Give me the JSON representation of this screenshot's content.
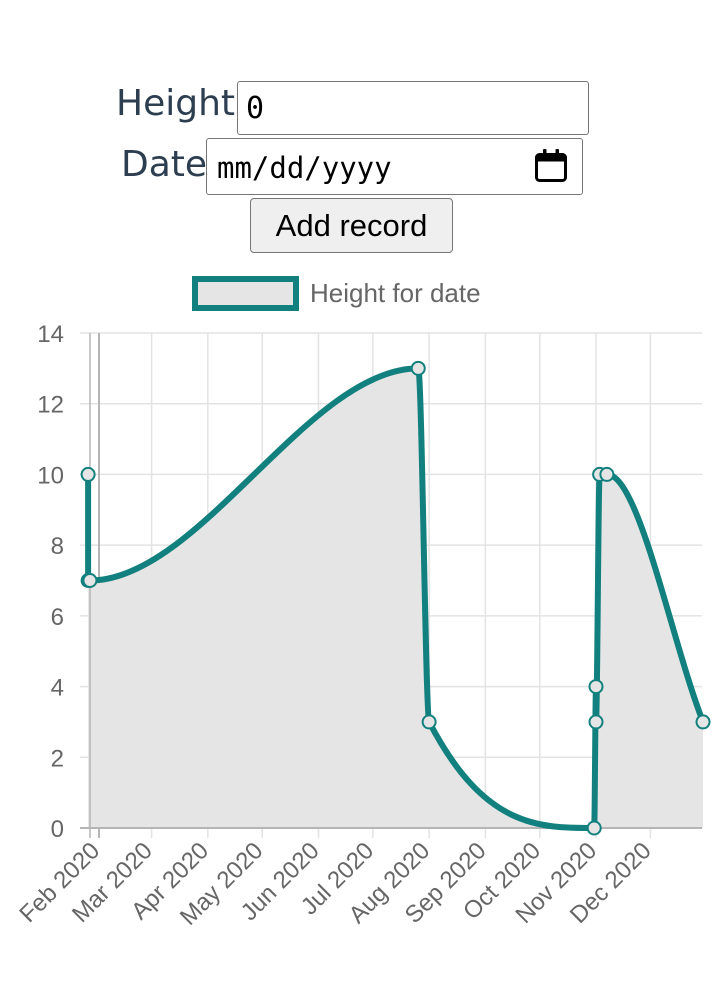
{
  "form": {
    "height_label": "Height",
    "height_value": "0",
    "date_label": "Date",
    "date_placeholder": "mm/dd/yyyy",
    "submit_label": "Add record"
  },
  "icons": {
    "date_picker": "calendar-icon"
  },
  "colors": {
    "line": "#12807e",
    "fill": "#e5e5e5",
    "grid": "#e3e3e3",
    "axis": "#b5b5b5",
    "text": "#666666",
    "label": "#2c3e50"
  },
  "chart_data": {
    "type": "line",
    "title": "",
    "xlabel": "",
    "ylabel": "",
    "x_axis": "time",
    "series": [
      {
        "name": "Height for date",
        "points": [
          {
            "x": "2020-01-26",
            "y": 10
          },
          {
            "x": "2020-01-26",
            "y": 7
          },
          {
            "x": "2020-01-27",
            "y": 7
          },
          {
            "x": "2020-07-26",
            "y": 13
          },
          {
            "x": "2020-08-01",
            "y": 3
          },
          {
            "x": "2020-10-31",
            "y": 0
          },
          {
            "x": "2020-11-01",
            "y": 4
          },
          {
            "x": "2020-11-01",
            "y": 3
          },
          {
            "x": "2020-11-03",
            "y": 10
          },
          {
            "x": "2020-11-07",
            "y": 10
          },
          {
            "x": "2020-12-30",
            "y": 3
          }
        ]
      }
    ],
    "x_ticks": [
      "Feb 2020",
      "Mar 2020",
      "Apr 2020",
      "May 2020",
      "Jun 2020",
      "Jul 2020",
      "Aug 2020",
      "Sep 2020",
      "Oct 2020",
      "Nov 2020",
      "Dec 2020"
    ],
    "y_ticks": [
      "0",
      "2",
      "4",
      "6",
      "8",
      "10",
      "12",
      "14"
    ],
    "ylim": [
      0,
      14
    ],
    "fill": true,
    "grid": true,
    "legend": "top"
  }
}
